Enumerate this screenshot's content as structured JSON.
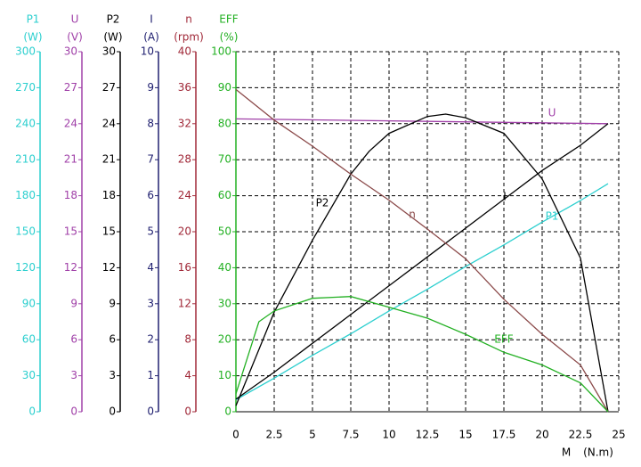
{
  "chart_data": {
    "type": "line",
    "grid": true,
    "x_label": "M",
    "x_unit": "(N.m)",
    "xlim": [
      0,
      25
    ],
    "xticks": [
      0,
      2.5,
      5,
      7.5,
      10,
      12.5,
      15,
      17.5,
      20,
      22.5,
      25
    ],
    "series": [
      {
        "name": "P1",
        "unit": "(W)",
        "color": "#2ccfcf",
        "ylim": [
          0,
          300
        ],
        "yticks": [
          0,
          30,
          60,
          90,
          120,
          150,
          180,
          210,
          240,
          270,
          300
        ],
        "x": [
          0,
          2.5,
          5,
          7.5,
          10,
          12.5,
          15,
          17.5,
          20,
          22.5,
          24.3
        ],
        "values": [
          10,
          28,
          47,
          65,
          84,
          102,
          121,
          139,
          158,
          176,
          190
        ]
      },
      {
        "name": "U",
        "unit": "(V)",
        "color": "#a040a8",
        "ylim": [
          0,
          30
        ],
        "yticks": [
          0,
          3,
          6,
          9,
          12,
          15,
          18,
          21,
          24,
          27,
          30
        ],
        "x": [
          0,
          24.3
        ],
        "values": [
          24.4,
          24.0
        ]
      },
      {
        "name": "P2",
        "unit": "(W)",
        "color": "#000000",
        "ylim": [
          0,
          30
        ],
        "yticks": [
          0,
          3,
          6,
          9,
          12,
          15,
          18,
          21,
          24,
          27,
          30
        ],
        "x": [
          0,
          2.5,
          5,
          7.5,
          8.7,
          10,
          12.5,
          13.7,
          15,
          17.5,
          20,
          22.5,
          24.3
        ],
        "values": [
          0.5,
          8.3,
          14.3,
          19.8,
          21.7,
          23.2,
          24.6,
          24.8,
          24.5,
          23.2,
          19.4,
          12.8,
          0
        ]
      },
      {
        "name": "I",
        "unit": "(A)",
        "color": "#202070",
        "ylim": [
          0,
          10
        ],
        "yticks": [
          0,
          1,
          2,
          3,
          4,
          5,
          6,
          7,
          8,
          9,
          10
        ],
        "x": [
          0,
          2.5,
          5,
          7.5,
          10,
          12.5,
          15,
          17.5,
          20,
          22.5,
          24.3
        ],
        "values": [
          0.35,
          1.1,
          1.9,
          2.7,
          3.5,
          4.3,
          5.1,
          5.9,
          6.7,
          7.4,
          8.0
        ]
      },
      {
        "name": "n",
        "unit": "(rpm)",
        "color": "#a02838",
        "ylim": [
          0,
          40
        ],
        "yticks": [
          0,
          4,
          8,
          12,
          16,
          20,
          24,
          28,
          32,
          36,
          40
        ],
        "x": [
          0,
          2.5,
          5,
          7.5,
          10,
          12.5,
          15,
          17.5,
          20,
          22.5,
          24.3
        ],
        "values": [
          35.8,
          32.4,
          29.5,
          26.4,
          23.5,
          20.3,
          17,
          12.5,
          8.6,
          5.2,
          0
        ]
      },
      {
        "name": "EFF",
        "unit": "(%)",
        "color": "#22b022",
        "ylim": [
          0,
          100
        ],
        "yticks": [
          0,
          10,
          20,
          30,
          40,
          50,
          60,
          70,
          80,
          90,
          100
        ],
        "x": [
          0,
          1.5,
          2.5,
          5,
          7.5,
          10,
          12.5,
          15,
          17.5,
          20,
          22.5,
          24.3
        ],
        "values": [
          5,
          25,
          28,
          31.5,
          32,
          29,
          26,
          21.5,
          16.5,
          13,
          8,
          0
        ]
      }
    ]
  }
}
